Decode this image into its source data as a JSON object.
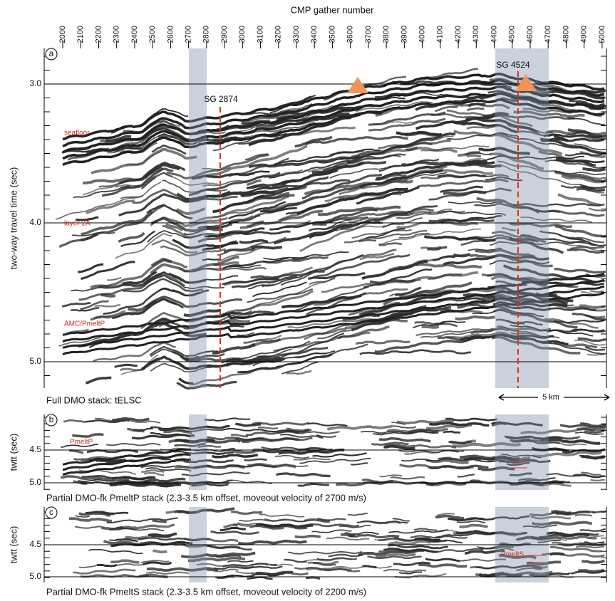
{
  "header": {
    "title": "CMP gather number",
    "ticks": [
      "2000",
      "2100",
      "2200",
      "2300",
      "2400",
      "2500",
      "2600",
      "2700",
      "2800",
      "2900",
      "3000",
      "3100",
      "3200",
      "3300",
      "3400",
      "3500",
      "3600",
      "3700",
      "3800",
      "3900",
      "4000",
      "4100",
      "4200",
      "4300",
      "4400",
      "4500",
      "4600",
      "4700",
      "4800",
      "4900",
      "5000"
    ]
  },
  "panels": [
    {
      "letter": "a",
      "y_label": "two-way travel time (sec)",
      "y_ticks": [
        "3.0",
        "4.0",
        "5.0"
      ],
      "caption": "Full DMO stack: tELSC",
      "scale_bar": "5 km",
      "annotations": [
        "SG 2874",
        "SG 4524",
        "seafloor",
        "layer 2A",
        "AMC/PmeltP"
      ]
    },
    {
      "letter": "b",
      "y_label": "twtt (sec)",
      "y_ticks": [
        "4.5",
        "5.0"
      ],
      "caption": "Partial DMO-fk PmeltP stack (2.3-3.5 km offset, moveout velocity of 2700 m/s)",
      "annotations": [
        "PmeltP"
      ]
    },
    {
      "letter": "c",
      "y_label": "twtt (sec)",
      "y_ticks": [
        "4.5",
        "5.0"
      ],
      "caption": "Partial DMO-fk PmeltS stack (2.3-3.5 km offset, moveout velocity of 2200 m/s)",
      "annotations": [
        "PmeltS"
      ]
    }
  ]
}
